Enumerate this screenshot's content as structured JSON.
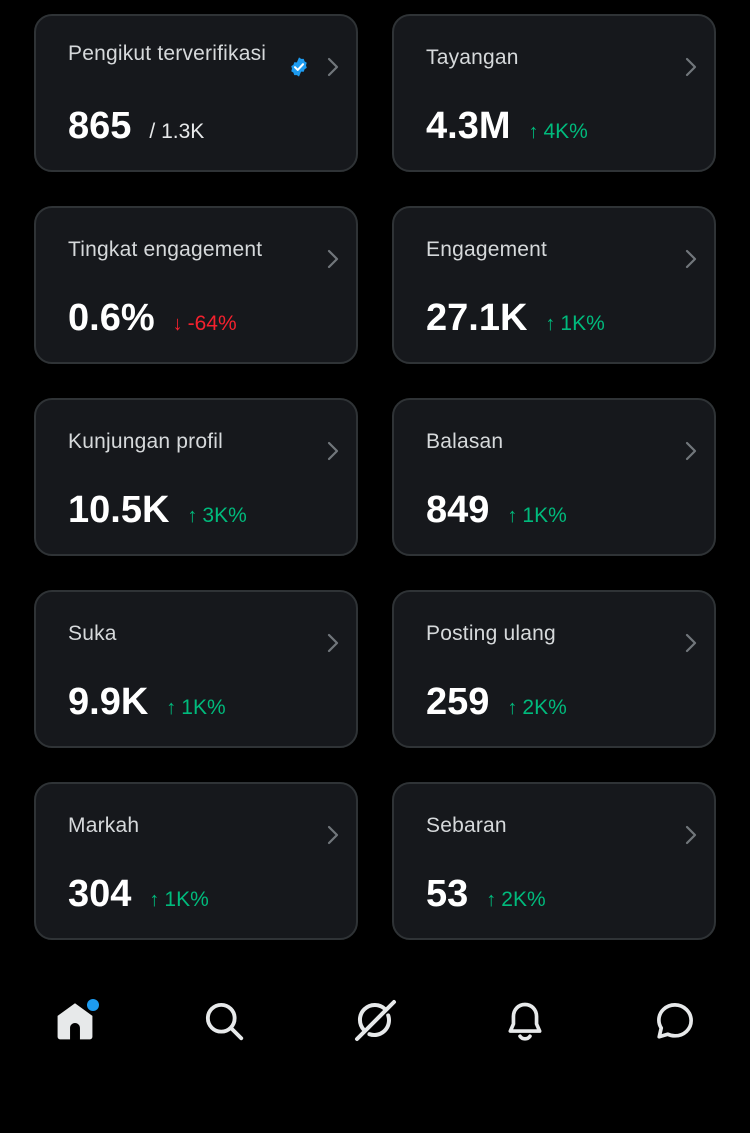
{
  "colors": {
    "background": "#000000",
    "card": "#16181c",
    "card_border": "#2f3336",
    "positive": "#00ba7c",
    "negative": "#f4212e",
    "verified": "#1d9bf0"
  },
  "cards": [
    {
      "label": "Pengikut terverifikasi",
      "value": "865",
      "suffix": "/ 1.3K",
      "verified_icon": "verified-badge-icon"
    },
    {
      "label": "Tayangan",
      "value": "4.3M",
      "delta_arrow": "↑",
      "delta": "4K%",
      "trend": "up"
    },
    {
      "label": "Tingkat engagement",
      "value": "0.6%",
      "delta_arrow": "↓",
      "delta": "-64%",
      "trend": "down"
    },
    {
      "label": "Engagement",
      "value": "27.1K",
      "delta_arrow": "↑",
      "delta": "1K%",
      "trend": "up"
    },
    {
      "label": "Kunjungan profil",
      "value": "10.5K",
      "delta_arrow": "↑",
      "delta": "3K%",
      "trend": "up"
    },
    {
      "label": "Balasan",
      "value": "849",
      "delta_arrow": "↑",
      "delta": "1K%",
      "trend": "up"
    },
    {
      "label": "Suka",
      "value": "9.9K",
      "delta_arrow": "↑",
      "delta": "1K%",
      "trend": "up"
    },
    {
      "label": "Posting ulang",
      "value": "259",
      "delta_arrow": "↑",
      "delta": "2K%",
      "trend": "up"
    },
    {
      "label": "Markah",
      "value": "304",
      "delta_arrow": "↑",
      "delta": "1K%",
      "trend": "up"
    },
    {
      "label": "Sebaran",
      "value": "53",
      "delta_arrow": "↑",
      "delta": "2K%",
      "trend": "up"
    }
  ],
  "nav": {
    "items": [
      "home-icon",
      "search-icon",
      "grok-icon",
      "notifications-icon",
      "messages-icon"
    ],
    "home_has_notification_dot": true
  }
}
